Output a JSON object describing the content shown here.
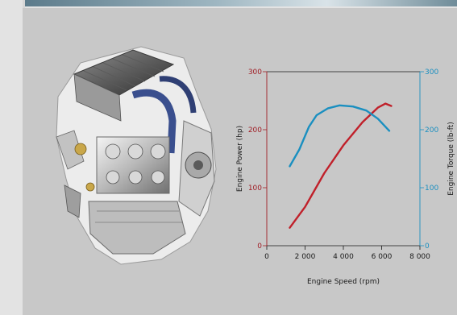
{
  "chart_data": {
    "type": "line",
    "title": "",
    "xlabel": "Engine Speed (rpm)",
    "ylabel_left": "Engine Power (hp)",
    "ylabel_right": "Engine Torque (lb-ft)",
    "xlim": [
      0,
      8000
    ],
    "ylim_left": [
      0,
      300
    ],
    "ylim_right": [
      0,
      300
    ],
    "x_ticks": [
      "0",
      "2 000",
      "4 000",
      "6 000",
      "8 000"
    ],
    "x_tick_values": [
      0,
      2000,
      4000,
      6000,
      8000
    ],
    "y_left_ticks": [
      "0",
      "100",
      "200",
      "300"
    ],
    "y_left_tick_values": [
      0,
      100,
      200,
      300
    ],
    "y_right_ticks": [
      "0",
      "100",
      "200",
      "300"
    ],
    "y_right_tick_values": [
      0,
      100,
      200,
      300
    ],
    "grid": false,
    "colors": {
      "power": "#c0202a",
      "torque": "#1a8fc0",
      "left_axis": "#a01d25",
      "right_axis": "#1a8fc0"
    },
    "series": [
      {
        "axis": "left",
        "color": "#c0202a",
        "x": [
          1200,
          2000,
          3000,
          4000,
          5000,
          5800,
          6200,
          6500
        ],
        "y": [
          31,
          67,
          125,
          173,
          213,
          238,
          245,
          241
        ]
      },
      {
        "axis": "right",
        "color": "#1a8fc0",
        "x": [
          1200,
          1700,
          2200,
          2600,
          3200,
          3800,
          4500,
          5200,
          5800,
          6400
        ],
        "y": [
          137,
          166,
          205,
          225,
          237,
          242,
          240,
          233,
          219,
          198
        ]
      }
    ]
  },
  "engine_image": {
    "icon": "engine-cutaway-illustration-icon"
  }
}
